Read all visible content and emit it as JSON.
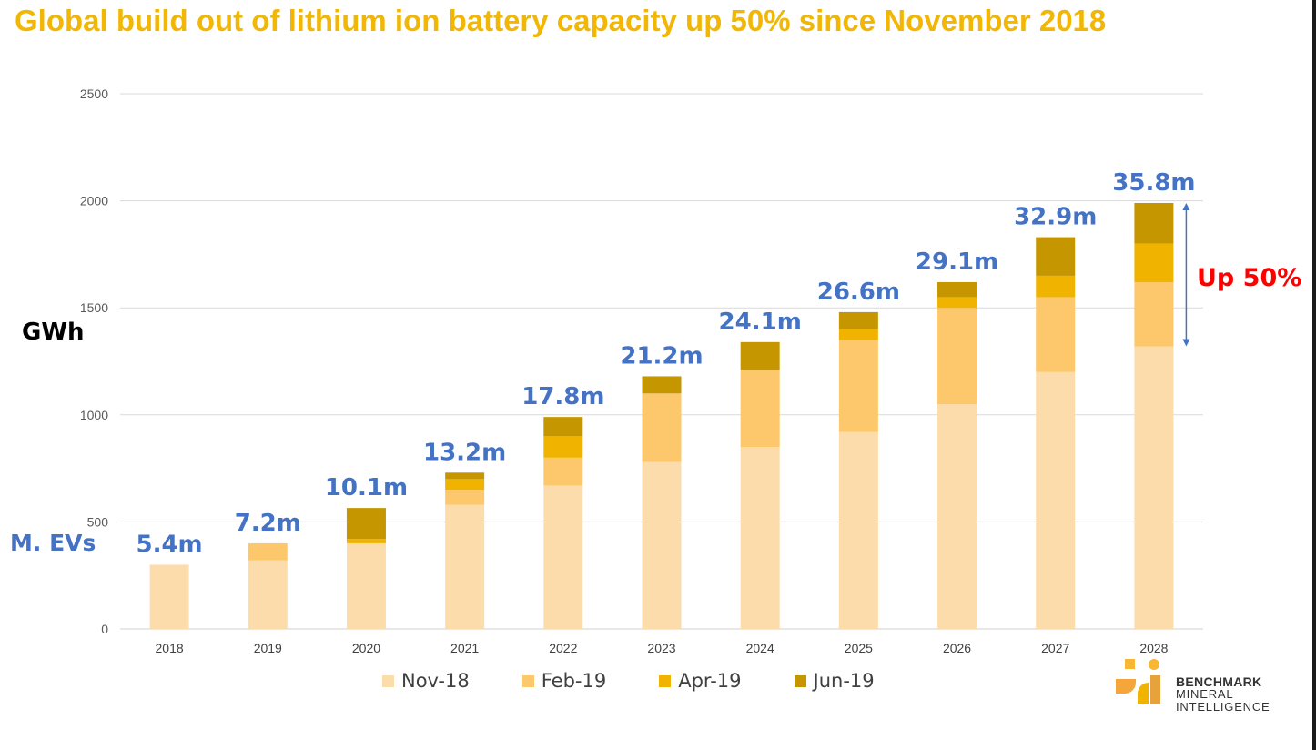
{
  "title": "Global build out of lithium ion battery capacity up 50% since November 2018",
  "side_labels": {
    "gwh": "GWh",
    "mevs": "M. EVs"
  },
  "annotation": {
    "up": "Up 50%"
  },
  "logo": {
    "line1": "BENCHMARK",
    "line2": "MINERAL",
    "line3": "INTELLIGENCE"
  },
  "colors": {
    "nov18": "#fddcab",
    "feb19": "#fcc86b",
    "apr19": "#f0b400",
    "jun19": "#c59600",
    "ev_label": "#4472c4",
    "title": "#f2b705"
  },
  "chart_data": {
    "type": "bar",
    "stacked": true,
    "categories": [
      "2018",
      "2019",
      "2020",
      "2021",
      "2022",
      "2023",
      "2024",
      "2025",
      "2026",
      "2027",
      "2028"
    ],
    "ylabel": "GWh",
    "ylim": [
      0,
      2500
    ],
    "yticks": [
      0,
      500,
      1000,
      1500,
      2000,
      2500
    ],
    "grid": true,
    "legend_position": "bottom",
    "series": [
      {
        "name": "Nov-18",
        "values": [
          300,
          320,
          400,
          580,
          670,
          780,
          850,
          920,
          1050,
          1200,
          1320
        ]
      },
      {
        "name": "Feb-19",
        "values": [
          0,
          80,
          0,
          70,
          130,
          320,
          360,
          430,
          450,
          350,
          300
        ]
      },
      {
        "name": "Apr-19",
        "values": [
          0,
          0,
          20,
          50,
          100,
          0,
          0,
          50,
          50,
          100,
          180
        ]
      },
      {
        "name": "Jun-19",
        "values": [
          0,
          0,
          145,
          30,
          90,
          80,
          130,
          80,
          70,
          180,
          190
        ]
      }
    ],
    "ev_labels": [
      "5.4m",
      "7.2m",
      "10.1m",
      "13.2m",
      "17.8m",
      "21.2m",
      "24.1m",
      "26.6m",
      "29.1m",
      "32.9m",
      "35.8m"
    ]
  }
}
